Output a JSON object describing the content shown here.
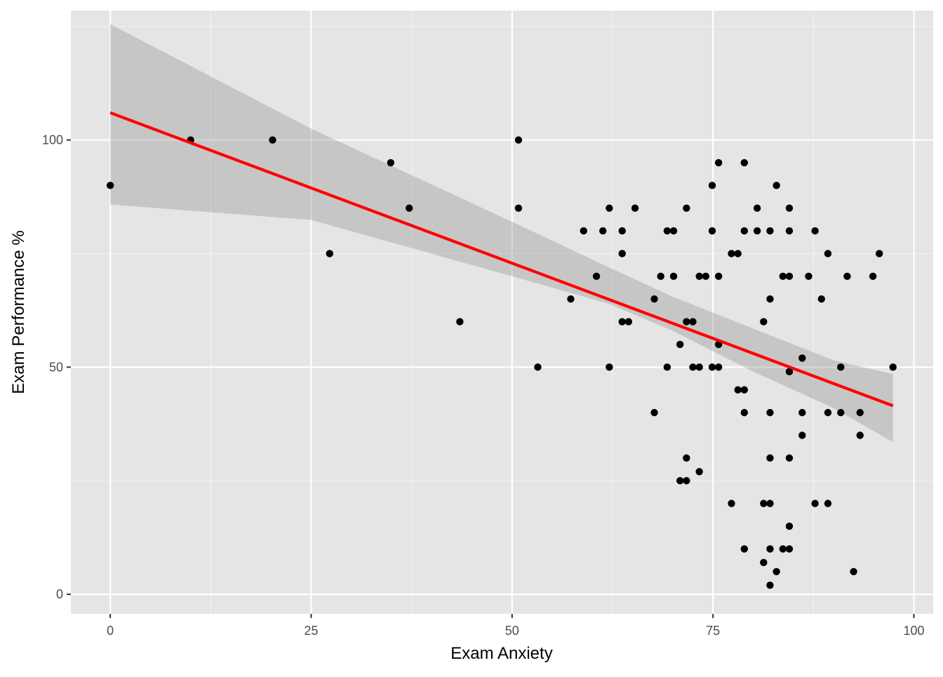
{
  "chart_data": {
    "type": "scatter",
    "title": "",
    "xlabel": "Exam Anxiety",
    "ylabel": "Exam Performance %",
    "xlim": [
      -4.9,
      102.4
    ],
    "ylim": [
      -4.3,
      128.5
    ],
    "x_ticks": [
      0,
      25,
      50,
      75,
      100
    ],
    "x_tick_labels": [
      "0",
      "25",
      "50",
      "75",
      "100"
    ],
    "y_ticks": [
      0,
      50,
      100
    ],
    "y_tick_labels": [
      "0",
      "50",
      "100"
    ],
    "grid": true,
    "legend": "none",
    "colors": {
      "panel": "#e5e5e5",
      "grid_major": "#ffffff",
      "grid_minor": "#f2f2f2",
      "points": "#000000",
      "fit_line": "#ff0000",
      "confidence_band": "#999999"
    },
    "points": [
      {
        "x": 0,
        "y": 90
      },
      {
        "x": 10,
        "y": 100
      },
      {
        "x": 20.2,
        "y": 100
      },
      {
        "x": 27.3,
        "y": 75
      },
      {
        "x": 34.9,
        "y": 95
      },
      {
        "x": 37.2,
        "y": 85
      },
      {
        "x": 43.5,
        "y": 60
      },
      {
        "x": 50.8,
        "y": 100
      },
      {
        "x": 50.8,
        "y": 85
      },
      {
        "x": 53.2,
        "y": 50
      },
      {
        "x": 57.3,
        "y": 65
      },
      {
        "x": 58.9,
        "y": 80
      },
      {
        "x": 60.5,
        "y": 70
      },
      {
        "x": 61.3,
        "y": 80
      },
      {
        "x": 62.1,
        "y": 85
      },
      {
        "x": 62.1,
        "y": 50
      },
      {
        "x": 63.7,
        "y": 80
      },
      {
        "x": 63.7,
        "y": 75
      },
      {
        "x": 63.7,
        "y": 60
      },
      {
        "x": 64.5,
        "y": 60
      },
      {
        "x": 65.3,
        "y": 85
      },
      {
        "x": 67.7,
        "y": 65
      },
      {
        "x": 67.7,
        "y": 40
      },
      {
        "x": 68.5,
        "y": 70
      },
      {
        "x": 69.3,
        "y": 80
      },
      {
        "x": 69.3,
        "y": 50
      },
      {
        "x": 70.1,
        "y": 80
      },
      {
        "x": 70.1,
        "y": 70
      },
      {
        "x": 70.9,
        "y": 55
      },
      {
        "x": 70.9,
        "y": 25
      },
      {
        "x": 71.7,
        "y": 85
      },
      {
        "x": 71.7,
        "y": 60
      },
      {
        "x": 71.7,
        "y": 30
      },
      {
        "x": 71.7,
        "y": 25
      },
      {
        "x": 72.5,
        "y": 60
      },
      {
        "x": 72.5,
        "y": 50
      },
      {
        "x": 73.3,
        "y": 70
      },
      {
        "x": 73.3,
        "y": 50
      },
      {
        "x": 73.3,
        "y": 27
      },
      {
        "x": 74.1,
        "y": 70
      },
      {
        "x": 74.9,
        "y": 90
      },
      {
        "x": 74.9,
        "y": 80
      },
      {
        "x": 74.9,
        "y": 50
      },
      {
        "x": 75.7,
        "y": 95
      },
      {
        "x": 75.7,
        "y": 70
      },
      {
        "x": 75.7,
        "y": 55
      },
      {
        "x": 75.7,
        "y": 50
      },
      {
        "x": 77.3,
        "y": 75
      },
      {
        "x": 77.3,
        "y": 20
      },
      {
        "x": 78.1,
        "y": 75
      },
      {
        "x": 78.1,
        "y": 45
      },
      {
        "x": 78.9,
        "y": 95
      },
      {
        "x": 78.9,
        "y": 80
      },
      {
        "x": 78.9,
        "y": 45
      },
      {
        "x": 78.9,
        "y": 40
      },
      {
        "x": 78.9,
        "y": 10
      },
      {
        "x": 80.5,
        "y": 85
      },
      {
        "x": 80.5,
        "y": 80
      },
      {
        "x": 81.3,
        "y": 60
      },
      {
        "x": 81.3,
        "y": 20
      },
      {
        "x": 81.3,
        "y": 7
      },
      {
        "x": 82.1,
        "y": 80
      },
      {
        "x": 82.1,
        "y": 65
      },
      {
        "x": 82.1,
        "y": 40
      },
      {
        "x": 82.1,
        "y": 30
      },
      {
        "x": 82.1,
        "y": 20
      },
      {
        "x": 82.1,
        "y": 10
      },
      {
        "x": 82.1,
        "y": 2
      },
      {
        "x": 82.9,
        "y": 90
      },
      {
        "x": 82.9,
        "y": 5
      },
      {
        "x": 83.7,
        "y": 70
      },
      {
        "x": 83.7,
        "y": 10
      },
      {
        "x": 84.5,
        "y": 85
      },
      {
        "x": 84.5,
        "y": 80
      },
      {
        "x": 84.5,
        "y": 70
      },
      {
        "x": 84.5,
        "y": 49
      },
      {
        "x": 84.5,
        "y": 30
      },
      {
        "x": 84.5,
        "y": 15
      },
      {
        "x": 84.5,
        "y": 10
      },
      {
        "x": 86.1,
        "y": 52
      },
      {
        "x": 86.1,
        "y": 40
      },
      {
        "x": 86.1,
        "y": 35
      },
      {
        "x": 86.9,
        "y": 70
      },
      {
        "x": 87.7,
        "y": 80
      },
      {
        "x": 87.7,
        "y": 20
      },
      {
        "x": 88.5,
        "y": 65
      },
      {
        "x": 89.3,
        "y": 75
      },
      {
        "x": 89.3,
        "y": 40
      },
      {
        "x": 89.3,
        "y": 20
      },
      {
        "x": 90.9,
        "y": 50
      },
      {
        "x": 90.9,
        "y": 40
      },
      {
        "x": 91.7,
        "y": 70
      },
      {
        "x": 92.5,
        "y": 5
      },
      {
        "x": 93.3,
        "y": 40
      },
      {
        "x": 93.3,
        "y": 35
      },
      {
        "x": 94.9,
        "y": 70
      },
      {
        "x": 95.7,
        "y": 75
      },
      {
        "x": 97.4,
        "y": 50
      }
    ],
    "fit": {
      "method": "linear regression",
      "x": [
        0,
        97.4
      ],
      "y": [
        106,
        41.5
      ]
    },
    "confidence_band": [
      {
        "x": 0,
        "lower": 85.8,
        "upper": 125.5
      },
      {
        "x": 25,
        "lower": 82.4,
        "upper": 102.5
      },
      {
        "x": 50,
        "lower": 70.0,
        "upper": 82.0
      },
      {
        "x": 62,
        "lower": 64.0,
        "upper": 72.0
      },
      {
        "x": 70,
        "lower": 58.0,
        "upper": 65.5
      },
      {
        "x": 80,
        "lower": 49.0,
        "upper": 58.5
      },
      {
        "x": 90,
        "lower": 41.0,
        "upper": 51.5
      },
      {
        "x": 97.4,
        "lower": 33.5,
        "upper": 48.5
      }
    ]
  }
}
